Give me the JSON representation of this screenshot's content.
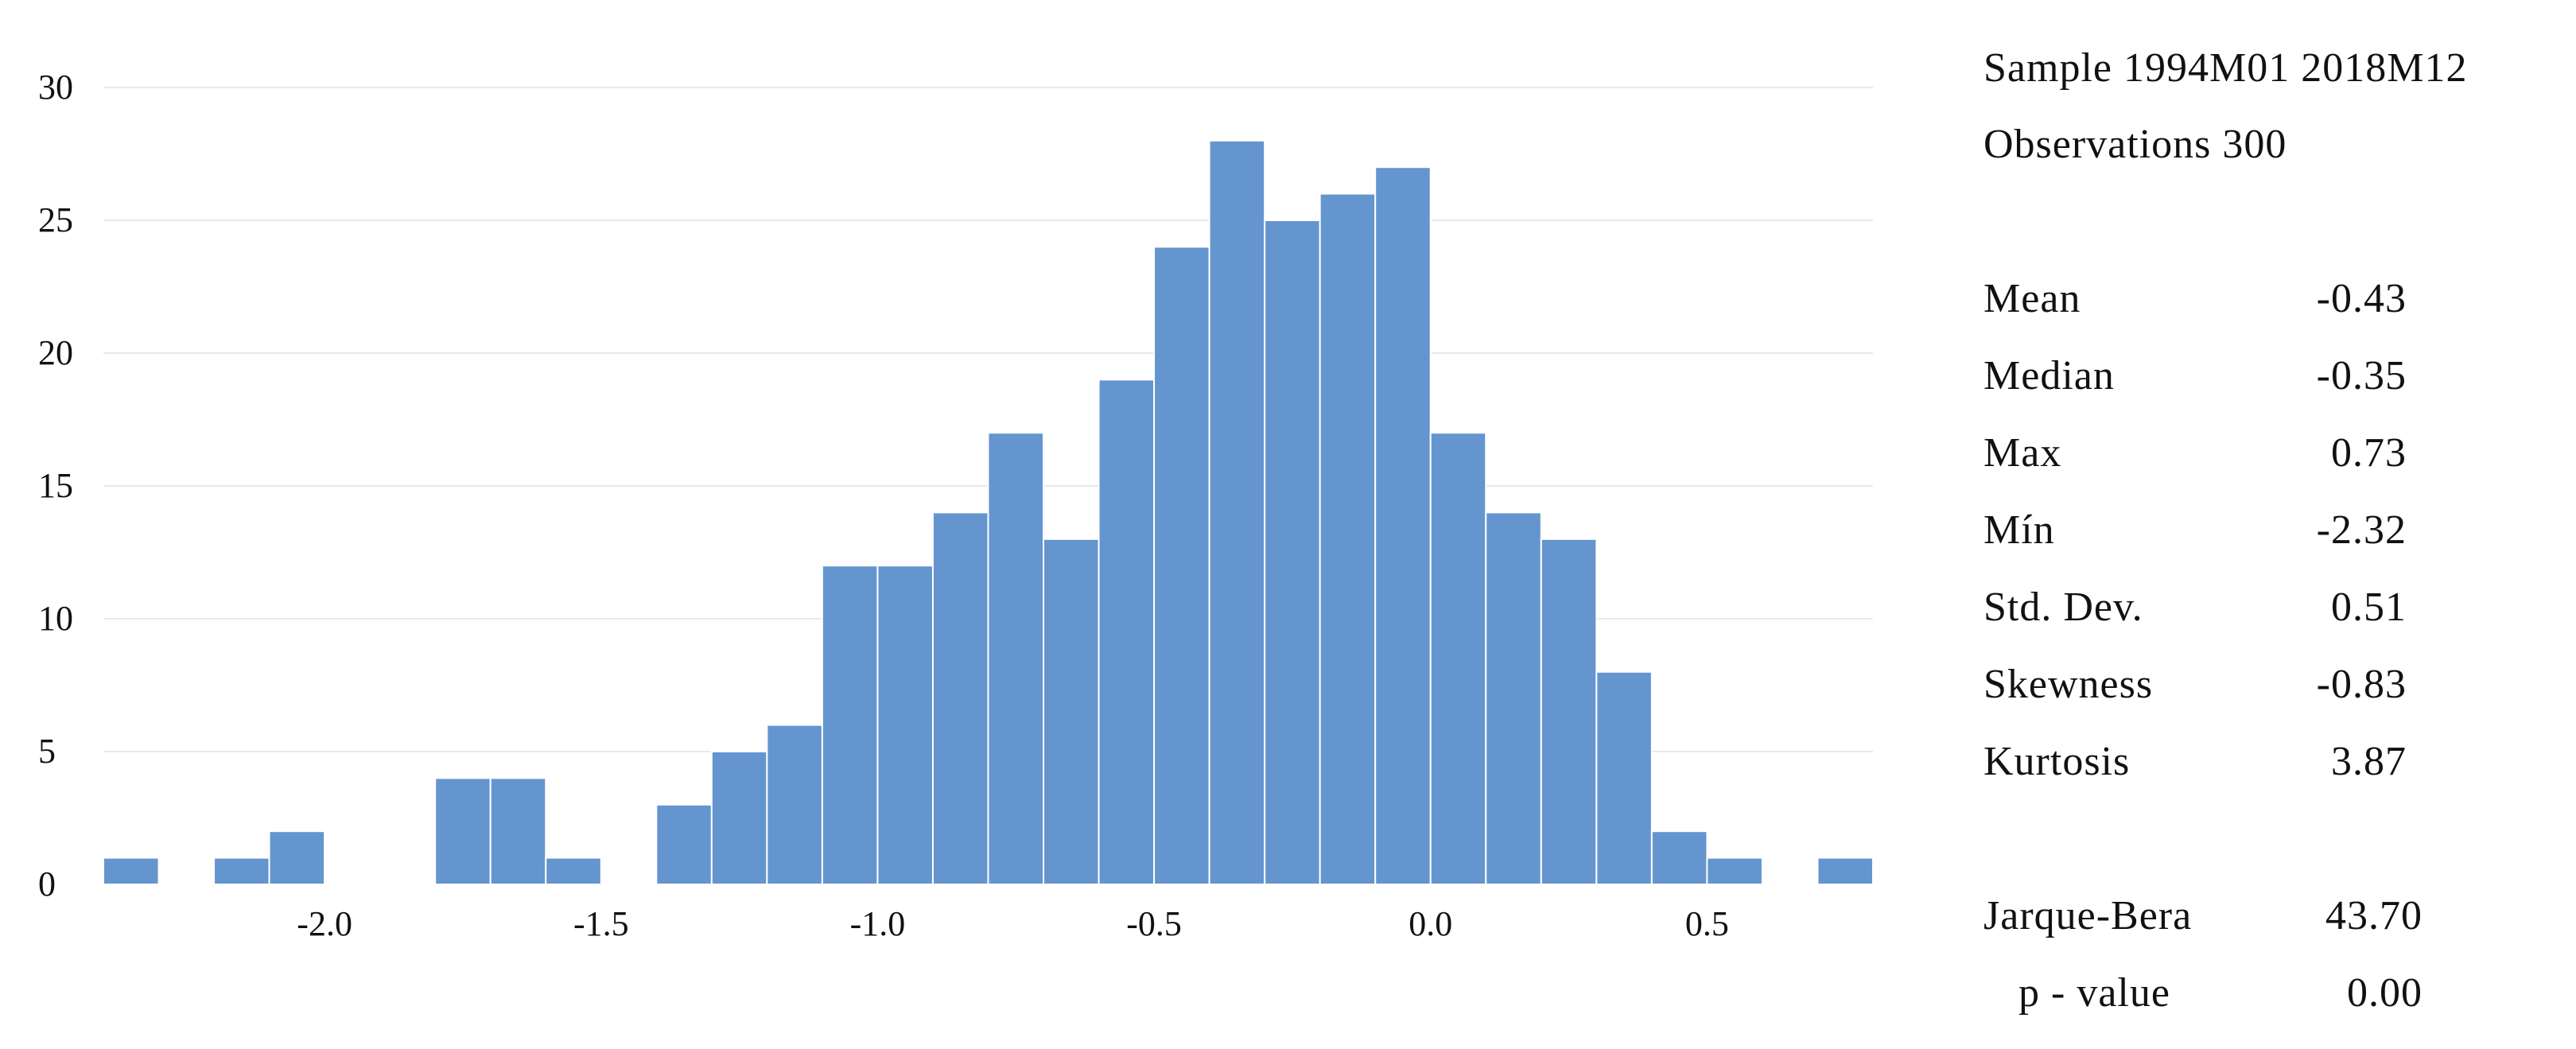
{
  "chart_data": {
    "type": "bar",
    "bin_edges": [
      -2.4,
      -2.3,
      -2.2,
      -2.1,
      -2.0,
      -1.9,
      -1.8,
      -1.7,
      -1.6,
      -1.5,
      -1.4,
      -1.3,
      -1.2,
      -1.1,
      -1.0,
      -0.9,
      -0.8,
      -0.7,
      -0.6,
      -0.5,
      -0.4,
      -0.3,
      -0.2,
      -0.1,
      0.0,
      0.1,
      0.2,
      0.3,
      0.4,
      0.5,
      0.6,
      0.7,
      0.8
    ],
    "values": [
      1,
      0,
      1,
      2,
      0,
      0,
      4,
      4,
      1,
      0,
      3,
      5,
      6,
      12,
      12,
      14,
      17,
      13,
      19,
      24,
      28,
      25,
      26,
      27,
      17,
      14,
      13,
      8,
      2,
      1,
      0,
      1
    ],
    "xlim": [
      -2.4,
      0.8
    ],
    "ylim": [
      0,
      30
    ],
    "xticks": [
      -2.0,
      -1.5,
      -1.0,
      -0.5,
      0.0,
      0.5
    ],
    "xtick_labels": [
      "-2.0",
      "-1.5",
      "-1.0",
      "-0.5",
      "0.0",
      "0.5"
    ],
    "yticks": [
      0,
      5,
      10,
      15,
      20,
      25,
      30
    ],
    "ytick_labels": [
      "0",
      "5",
      "10",
      "15",
      "20",
      "25",
      "30"
    ],
    "grid": true,
    "bar_color": "#6495cf"
  },
  "stats": {
    "sample_line": "Sample 1994M01 2018M12",
    "observations_line": "Observations 300",
    "rows": [
      {
        "label": "Mean",
        "value": "-0.43"
      },
      {
        "label": "Median",
        "value": "-0.35"
      },
      {
        "label": "Max",
        "value": "0.73"
      },
      {
        "label": "Mín",
        "value": "-2.32"
      },
      {
        "label": "Std. Dev.",
        "value": "0.51"
      },
      {
        "label": "Skewness",
        "value": "-0.83"
      },
      {
        "label": "Kurtosis",
        "value": "3.87"
      }
    ],
    "jarque_bera_label": "Jarque-Bera",
    "jarque_bera_value": "43.70",
    "pvalue_label": "p - value",
    "pvalue_value": "0.00"
  }
}
